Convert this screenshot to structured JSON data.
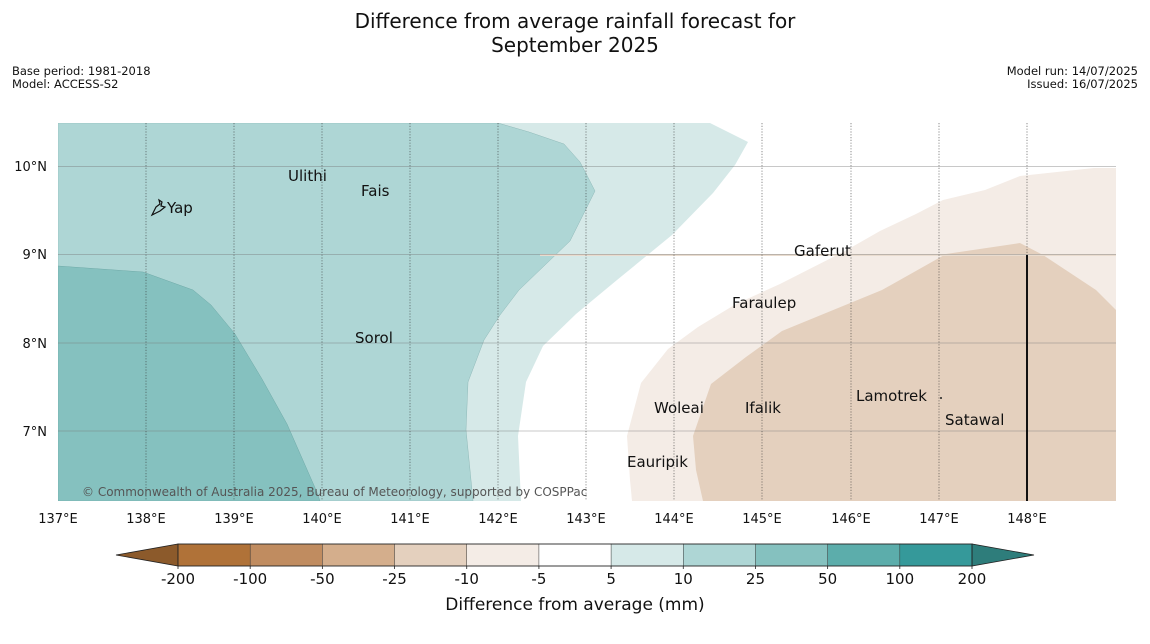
{
  "title": {
    "line1": "Difference from average rainfall forecast for",
    "line2": "September 2025"
  },
  "meta_left": [
    "Base period: 1981-2018",
    "Model: ACCESS-S2"
  ],
  "meta_right": [
    "Model run: 14/07/2025",
    "Issued: 16/07/2025"
  ],
  "map": {
    "lon_range": [
      137,
      149
    ],
    "lat_range": [
      6.2,
      10.5
    ],
    "lon_ticks": [
      "137°E",
      "138°E",
      "139°E",
      "140°E",
      "141°E",
      "142°E",
      "143°E",
      "144°E",
      "145°E",
      "146°E",
      "147°E",
      "148°E"
    ],
    "lat_ticks": [
      "10°N",
      "9°N",
      "8°N",
      "7°N"
    ],
    "places": [
      {
        "name": "Ulithi",
        "lon": 139.75,
        "lat": 9.9
      },
      {
        "name": "Fais",
        "lon": 140.45,
        "lat": 9.75
      },
      {
        "name": "Yap",
        "lon": 138.1,
        "lat": 9.5
      },
      {
        "name": "Gaferut",
        "lon": 145.35,
        "lat": 9.05
      },
      {
        "name": "Faraulep",
        "lon": 144.65,
        "lat": 8.45
      },
      {
        "name": "Sorol",
        "lon": 140.4,
        "lat": 8.05
      },
      {
        "name": "Lamotrek",
        "lon": 146.05,
        "lat": 7.4
      },
      {
        "name": "Woleai",
        "lon": 143.8,
        "lat": 7.25
      },
      {
        "name": "Ifalik",
        "lon": 144.75,
        "lat": 7.25
      },
      {
        "name": "Satawal",
        "lon": 147.1,
        "lat": 7.12
      },
      {
        "name": "Eauripik",
        "lon": 143.5,
        "lat": 6.65
      }
    ],
    "copyright": "© Commonwealth of Australia 2025, Bureau of Meteorology, supported by COSPPac"
  },
  "colorbar": {
    "ticks": [
      "-200",
      "-100",
      "-50",
      "-25",
      "-10",
      "-5",
      "5",
      "10",
      "25",
      "50",
      "100",
      "200"
    ],
    "colors": [
      "#b07238",
      "#c08c60",
      "#d4ae8c",
      "#e4d0be",
      "#f4ece6",
      "#ffffff",
      "#d6e9e8",
      "#aed6d5",
      "#85c1bf",
      "#5cadab",
      "#35999a"
    ],
    "under_color": "#8c5a2b",
    "over_color": "#2e7d7b",
    "title": "Difference from average (mm)"
  }
}
